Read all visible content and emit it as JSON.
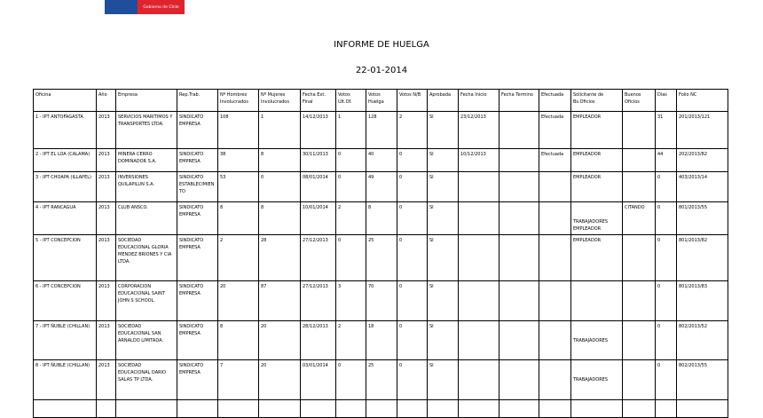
{
  "header": {
    "logo_text": "Gobierno de Chile",
    "title": "INFORME DE HUELGA",
    "date": "22-01-2014"
  },
  "table": {
    "columns": [
      "Oficina",
      "Año",
      "Empresa",
      "Rep.Trab.",
      "Nº Hombres Involucrados",
      "Nº Mujeres Involucrados",
      "Fecha Ext. Final",
      "Votos Ult.Of.",
      "Votos Huelga",
      "Votos N/B",
      "Aprobada",
      "Fecha Inicio",
      "Fecha Termino",
      "Efectuada",
      "Solicitante de Bs.Oficios",
      "Buenos Oficios",
      "Días",
      "Folio NC"
    ],
    "rows": [
      [
        "1 - IPT ANTOFAGASTA",
        "2013",
        "SERVICIOS MARITIMOS Y TRANSPORTES LTDA.",
        "SINDICATO EMPRESA",
        "108",
        "1",
        "14/12/2013",
        "1",
        "128",
        "2",
        "SI",
        "23/12/2013",
        "",
        "Efectuada",
        "EMPLEADOR",
        "",
        "31",
        "201/2013/121"
      ],
      [
        "2 - IPT EL LOA (CALAMA)",
        "2013",
        "MINERA CERRO DOMINADOR S.A.",
        "SINDICATO EMPRESA",
        "38",
        "8",
        "30/11/2013",
        "0",
        "40",
        "0",
        "SI",
        "10/12/2013",
        "",
        "Efectuada",
        "EMPLEADOR",
        "",
        "44",
        "202/2013/82"
      ],
      [
        "3 - IPT CHOAPA (ILLAPEL)",
        "2013",
        "INVERSIONES QUILAPILUN S.A.",
        "SINDICATO ESTABLECIMIENTO",
        "53",
        "0",
        "08/01/2014",
        "0",
        "49",
        "0",
        "SI",
        "",
        "",
        "",
        "EMPLEADOR",
        "",
        "0",
        "403/2013/14"
      ],
      [
        "4 - IPT RANCAGUA",
        "2013",
        "CLUB ANSCO.",
        "SINDICATO EMPRESA",
        "8",
        "8",
        "10/01/2014",
        "2",
        "8",
        "0",
        "SI",
        "",
        "",
        "",
        "TRABAJADORES EMPLEADOR",
        "CITANDO",
        "0",
        "801/2013/55"
      ],
      [
        "5 - IPT CONCEPCION",
        "2013",
        "SOCIEDAD EDUCACIONAL GLORIA MENDEZ BRIONES Y CIA LTDA.",
        "SINDICATO EMPRESA",
        "2",
        "28",
        "27/12/2013",
        "0",
        "25",
        "0",
        "SI",
        "",
        "",
        "",
        "EMPLEADOR",
        "",
        "0",
        "801/2013/82"
      ],
      [
        "6 - IPT CONCEPCION",
        "2013",
        "CORPORACION EDUCACIONAL SAINT JOHN S SCHOOL.",
        "SINDICATO EMPRESA",
        "20",
        "87",
        "27/12/2013",
        "3",
        "70",
        "0",
        "SI",
        "",
        "",
        "",
        "",
        "",
        "0",
        "801/2013/83"
      ],
      [
        "7 - IPT ÑUBLE (CHILLAN)",
        "2013",
        "SOCIEDAD EDUCACIONAL SAN ARNALDO LIMITADA.",
        "SINDICATO EMPRESA",
        "8",
        "20",
        "28/12/2013",
        "2",
        "18",
        "0",
        "SI",
        "",
        "",
        "",
        "TRABAJADORES",
        "",
        "0",
        "802/2013/52"
      ],
      [
        "8 - IPT ÑUBLE (CHILLAN)",
        "2013",
        "SOCIEDAD EDUCACIONAL DARIO SALAS TP LTDA.",
        "SINDICATO EMPRESA",
        "7",
        "20",
        "03/01/2014",
        "0",
        "25",
        "0",
        "SI",
        "",
        "",
        "",
        "TRABAJADORES",
        "",
        "0",
        "802/2013/55"
      ],
      [
        "",
        "",
        "",
        "",
        "",
        "",
        "",
        "",
        "",
        "",
        "",
        "",
        "",
        "",
        "",
        "",
        "",
        ""
      ]
    ]
  }
}
